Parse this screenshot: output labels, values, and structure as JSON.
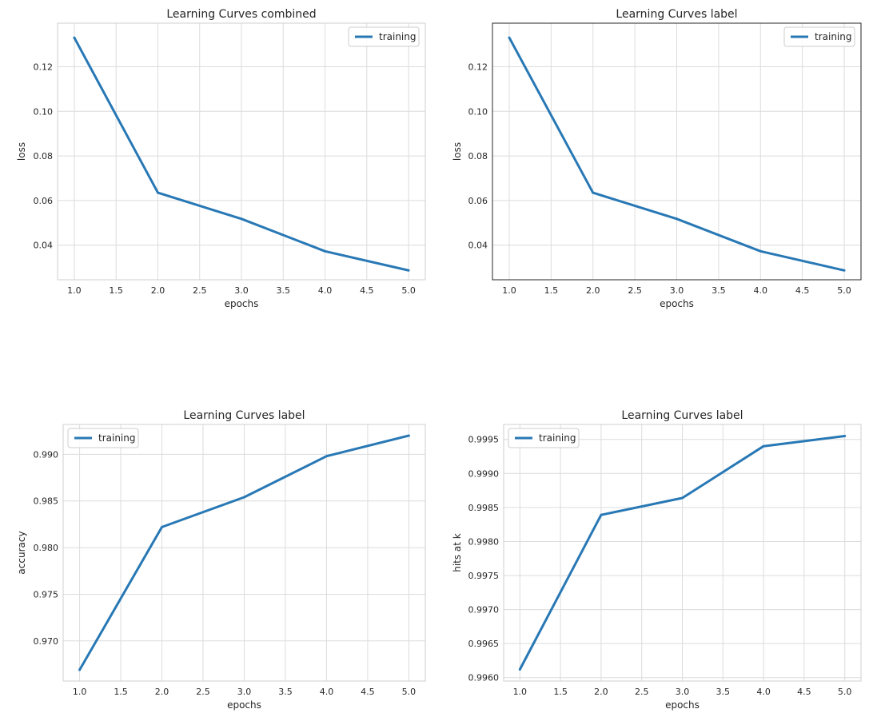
{
  "line_color": "#2878b5",
  "grid_color": "#dcdcdc",
  "chart_data": [
    {
      "type": "line",
      "title": "Learning Curves combined",
      "xlabel": "epochs",
      "ylabel": "loss",
      "x": [
        1,
        2,
        3,
        4,
        5
      ],
      "series": [
        {
          "name": "training",
          "values": [
            0.133,
            0.0635,
            0.0518,
            0.0373,
            0.0287
          ]
        }
      ],
      "xlim": [
        0.8,
        5.2
      ],
      "ylim": [
        0.0245,
        0.1395
      ],
      "xticks": [
        1.0,
        1.5,
        2.0,
        2.5,
        3.0,
        3.5,
        4.0,
        4.5,
        5.0
      ],
      "xtick_labels": [
        "1.0",
        "1.5",
        "2.0",
        "2.5",
        "3.0",
        "3.5",
        "4.0",
        "4.5",
        "5.0"
      ],
      "yticks": [
        0.04,
        0.06,
        0.08,
        0.1,
        0.12
      ],
      "ytick_labels": [
        "0.04",
        "0.06",
        "0.08",
        "0.10",
        "0.12"
      ],
      "grid": true,
      "legend_position": "top-right",
      "frame": "light"
    },
    {
      "type": "line",
      "title": "Learning Curves label",
      "xlabel": "epochs",
      "ylabel": "loss",
      "x": [
        1,
        2,
        3,
        4,
        5
      ],
      "series": [
        {
          "name": "training",
          "values": [
            0.133,
            0.0635,
            0.0518,
            0.0373,
            0.0287
          ]
        }
      ],
      "xlim": [
        0.8,
        5.2
      ],
      "ylim": [
        0.0245,
        0.1395
      ],
      "xticks": [
        1.0,
        1.5,
        2.0,
        2.5,
        3.0,
        3.5,
        4.0,
        4.5,
        5.0
      ],
      "xtick_labels": [
        "1.0",
        "1.5",
        "2.0",
        "2.5",
        "3.0",
        "3.5",
        "4.0",
        "4.5",
        "5.0"
      ],
      "yticks": [
        0.04,
        0.06,
        0.08,
        0.1,
        0.12
      ],
      "ytick_labels": [
        "0.04",
        "0.06",
        "0.08",
        "0.10",
        "0.12"
      ],
      "grid": true,
      "legend_position": "top-right",
      "frame": "dark"
    },
    {
      "type": "line",
      "title": "Learning Curves label",
      "xlabel": "epochs",
      "ylabel": "accuracy",
      "x": [
        1,
        2,
        3,
        4,
        5
      ],
      "series": [
        {
          "name": "training",
          "values": [
            0.9669,
            0.9822,
            0.9854,
            0.9898,
            0.992
          ]
        }
      ],
      "xlim": [
        0.8,
        5.2
      ],
      "ylim": [
        0.9657,
        0.9932
      ],
      "xticks": [
        1.0,
        1.5,
        2.0,
        2.5,
        3.0,
        3.5,
        4.0,
        4.5,
        5.0
      ],
      "xtick_labels": [
        "1.0",
        "1.5",
        "2.0",
        "2.5",
        "3.0",
        "3.5",
        "4.0",
        "4.5",
        "5.0"
      ],
      "yticks": [
        0.97,
        0.975,
        0.98,
        0.985,
        0.99
      ],
      "ytick_labels": [
        "0.970",
        "0.975",
        "0.980",
        "0.985",
        "0.990"
      ],
      "grid": true,
      "legend_position": "top-left",
      "frame": "light"
    },
    {
      "type": "line",
      "title": "Learning Curves label",
      "xlabel": "epochs",
      "ylabel": "hits at k",
      "x": [
        1,
        2,
        3,
        4,
        5
      ],
      "series": [
        {
          "name": "training",
          "values": [
            0.99612,
            0.99839,
            0.99864,
            0.9994,
            0.99955
          ]
        }
      ],
      "xlim": [
        0.8,
        5.2
      ],
      "ylim": [
        0.99595,
        0.99972
      ],
      "xticks": [
        1.0,
        1.5,
        2.0,
        2.5,
        3.0,
        3.5,
        4.0,
        4.5,
        5.0
      ],
      "xtick_labels": [
        "1.0",
        "1.5",
        "2.0",
        "2.5",
        "3.0",
        "3.5",
        "4.0",
        "4.5",
        "5.0"
      ],
      "yticks": [
        0.996,
        0.9965,
        0.997,
        0.9975,
        0.998,
        0.9985,
        0.999,
        0.9995
      ],
      "ytick_labels": [
        "0.9960",
        "0.9965",
        "0.9970",
        "0.9975",
        "0.9980",
        "0.9985",
        "0.9990",
        "0.9995"
      ],
      "grid": true,
      "legend_position": "top-left",
      "frame": "light"
    }
  ]
}
